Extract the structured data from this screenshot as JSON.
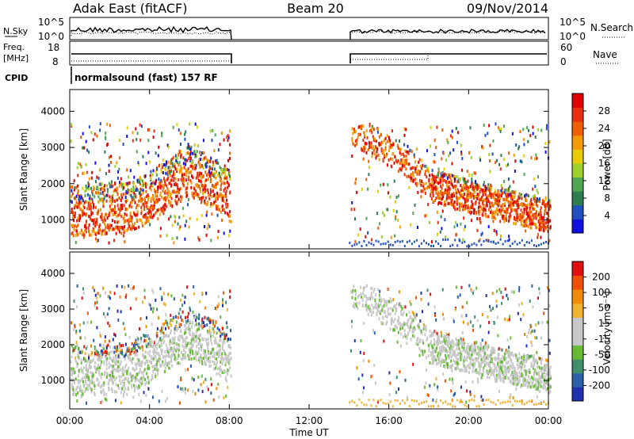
{
  "header": {
    "radar": "Adak East (fitACF)",
    "beam": "Beam 20",
    "date": "09/Nov/2014"
  },
  "strips": {
    "nsky_label": "N.Sky",
    "nsky_ticks": [
      "10^5",
      "10^0"
    ],
    "nsearch_label": "N.Search",
    "freq_label_1": "Freq.",
    "freq_label_2": "[MHz]",
    "freq_ticks": [
      "18",
      "8"
    ],
    "nave_label": "Nave",
    "nave_ticks": [
      "60",
      "0"
    ],
    "cpid_label": "CPID",
    "cpid_text": "normalsound (fast) 157 RF"
  },
  "colors": {
    "power_scale": [
      "#1010e0",
      "#2050c0",
      "#2e7d4f",
      "#4ea64e",
      "#9bd12a",
      "#e6cc00",
      "#f59a00",
      "#f06000",
      "#e83010",
      "#e00000"
    ],
    "velocity_scale": [
      "#2030b0",
      "#2a5fa8",
      "#3f8f6a",
      "#66bb33",
      "#c8c8c8",
      "#c8c8c8",
      "#f0b030",
      "#f08c00",
      "#f05000",
      "#e01010"
    ]
  },
  "chart_data": [
    {
      "type": "heatmap",
      "panel": "power",
      "ylabel": "Slant Range [km]",
      "yticks": [
        "1000",
        "2000",
        "3000",
        "4000"
      ],
      "ylim": [
        200,
        4600
      ],
      "xlim": [
        0,
        24
      ],
      "colorbar_label": "Power [dB]",
      "colorbar_ticks": [
        "28",
        "24",
        "20",
        "16",
        "12",
        "8",
        "4"
      ],
      "colorbar_range": [
        0,
        32
      ],
      "data_gaps": [
        [
          8,
          14
        ]
      ]
    },
    {
      "type": "heatmap",
      "panel": "velocity",
      "ylabel": "Slant Range [km]",
      "yticks": [
        "1000",
        "2000",
        "3000",
        "4000"
      ],
      "ylim": [
        200,
        4600
      ],
      "xlim": [
        0,
        24
      ],
      "xticks": [
        "00:00",
        "04:00",
        "08:00",
        "12:00",
        "16:00",
        "20:00",
        "00:00"
      ],
      "xlabel": "Time UT",
      "colorbar_label": "Velocity [m s⁻¹]",
      "colorbar_ticks": [
        "200",
        "100",
        "50",
        "15",
        "-15",
        "-50",
        "-100",
        "-200"
      ],
      "data_gaps": [
        [
          8,
          14
        ]
      ]
    }
  ]
}
